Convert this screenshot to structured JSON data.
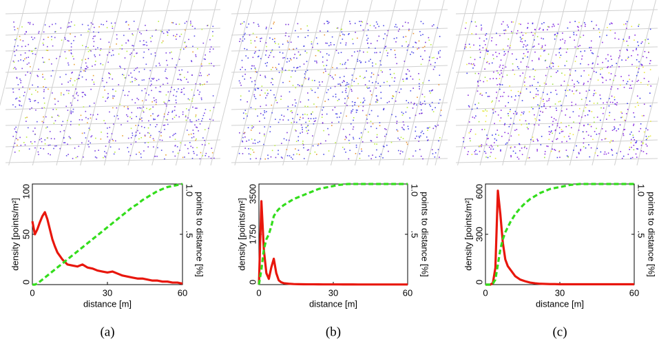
{
  "chart_data": [
    {
      "type": "line",
      "caption": "(a)",
      "xlabel": "distance [m]",
      "ylabel": "density [points/m²]",
      "y2label": "points to distance [%]",
      "x": [
        0,
        1,
        2,
        3,
        4,
        5,
        6,
        7,
        8,
        9,
        10,
        12,
        14,
        16,
        18,
        20,
        22,
        24,
        26,
        28,
        30,
        32,
        34,
        36,
        38,
        40,
        42,
        44,
        46,
        48,
        50,
        52,
        54,
        56,
        58,
        60
      ],
      "xlim": [
        0,
        60
      ],
      "xticks": [
        0,
        30,
        60
      ],
      "ylim": [
        0,
        100
      ],
      "yticks": [
        0,
        50,
        100
      ],
      "y2lim": [
        0,
        1
      ],
      "y2ticks": [
        {
          "value": 0.5,
          "label": ".5"
        },
        {
          "value": 1,
          "label": "1.0"
        }
      ],
      "series": [
        {
          "color": "#e8160c",
          "values": [
            63,
            50,
            55,
            62,
            68,
            72,
            65,
            55,
            45,
            38,
            32,
            25,
            20,
            19,
            18,
            20,
            17,
            16,
            14,
            13,
            12,
            13,
            11,
            9,
            8,
            7,
            6,
            6,
            5,
            4,
            4,
            3,
            3,
            2,
            2,
            1
          ]
        },
        {
          "color": "#33dd1c",
          "axis": "y2",
          "values": [
            0,
            0,
            0.01,
            0.03,
            0.05,
            0.07,
            0.09,
            0.11,
            0.13,
            0.15,
            0.17,
            0.21,
            0.25,
            0.29,
            0.33,
            0.37,
            0.41,
            0.45,
            0.49,
            0.53,
            0.57,
            0.61,
            0.65,
            0.69,
            0.73,
            0.77,
            0.8,
            0.84,
            0.87,
            0.9,
            0.93,
            0.95,
            0.97,
            0.98,
            0.99,
            1
          ]
        }
      ]
    },
    {
      "type": "line",
      "caption": "(b)",
      "xlabel": "distance [m]",
      "ylabel": "density [points/m²]",
      "y2label": "points to distance [%]",
      "x": [
        0,
        1,
        2,
        3,
        4,
        5,
        6,
        7,
        8,
        9,
        10,
        12,
        14,
        16,
        18,
        20,
        22,
        24,
        26,
        28,
        30,
        32,
        34,
        36,
        38,
        40,
        42,
        44,
        46,
        48,
        50,
        52,
        54,
        56,
        58,
        60
      ],
      "xlim": [
        0,
        60
      ],
      "xticks": [
        0,
        30,
        60
      ],
      "ylim": [
        0,
        3500
      ],
      "yticks": [
        0,
        1750,
        3500
      ],
      "y2lim": [
        0,
        1
      ],
      "y2ticks": [
        {
          "value": 0.5,
          "label": ".5"
        },
        {
          "value": 1,
          "label": "1.0"
        }
      ],
      "series": [
        {
          "color": "#e8160c",
          "values": [
            0,
            2900,
            1200,
            400,
            200,
            600,
            900,
            400,
            150,
            80,
            50,
            30,
            20,
            15,
            12,
            10,
            10,
            9,
            8,
            8,
            7,
            7,
            6,
            6,
            6,
            5,
            5,
            5,
            5,
            5,
            5,
            5,
            5,
            5,
            5,
            5
          ]
        },
        {
          "color": "#33dd1c",
          "axis": "y2",
          "values": [
            0,
            0.15,
            0.35,
            0.45,
            0.5,
            0.58,
            0.68,
            0.72,
            0.75,
            0.77,
            0.79,
            0.82,
            0.85,
            0.87,
            0.89,
            0.91,
            0.93,
            0.95,
            0.96,
            0.97,
            0.98,
            0.99,
            0.995,
            1,
            1,
            1,
            1,
            1,
            1,
            1,
            1,
            1,
            1,
            1,
            1,
            1
          ]
        }
      ]
    },
    {
      "type": "line",
      "caption": "(c)",
      "xlabel": "distance [m]",
      "ylabel": "density [points/m²]",
      "y2label": "points to distance [%]",
      "x": [
        0,
        1,
        2,
        3,
        4,
        5,
        6,
        7,
        8,
        9,
        10,
        12,
        14,
        16,
        18,
        20,
        22,
        24,
        26,
        28,
        30,
        32,
        34,
        36,
        38,
        40,
        42,
        44,
        46,
        48,
        50,
        52,
        54,
        56,
        58,
        60
      ],
      "xlim": [
        0,
        60
      ],
      "xticks": [
        0,
        30,
        60
      ],
      "ylim": [
        0,
        600
      ],
      "yticks": [
        0,
        300,
        600
      ],
      "y2lim": [
        0,
        1
      ],
      "y2ticks": [
        {
          "value": 0.5,
          "label": ".5"
        },
        {
          "value": 1,
          "label": "1.0"
        }
      ],
      "series": [
        {
          "color": "#e8160c",
          "values": [
            0,
            0,
            0,
            10,
            100,
            560,
            420,
            250,
            150,
            110,
            90,
            50,
            30,
            20,
            12,
            8,
            5,
            4,
            3,
            3,
            2,
            2,
            2,
            2,
            2,
            2,
            2,
            2,
            2,
            2,
            2,
            2,
            2,
            2,
            2,
            2
          ]
        },
        {
          "color": "#33dd1c",
          "axis": "y2",
          "values": [
            0,
            0,
            0,
            0.01,
            0.05,
            0.2,
            0.35,
            0.45,
            0.52,
            0.57,
            0.62,
            0.7,
            0.76,
            0.81,
            0.85,
            0.88,
            0.91,
            0.93,
            0.95,
            0.96,
            0.97,
            0.98,
            0.99,
            0.995,
            1,
            1,
            1,
            1,
            1,
            1,
            1,
            1,
            1,
            1,
            1,
            1
          ]
        }
      ]
    }
  ]
}
